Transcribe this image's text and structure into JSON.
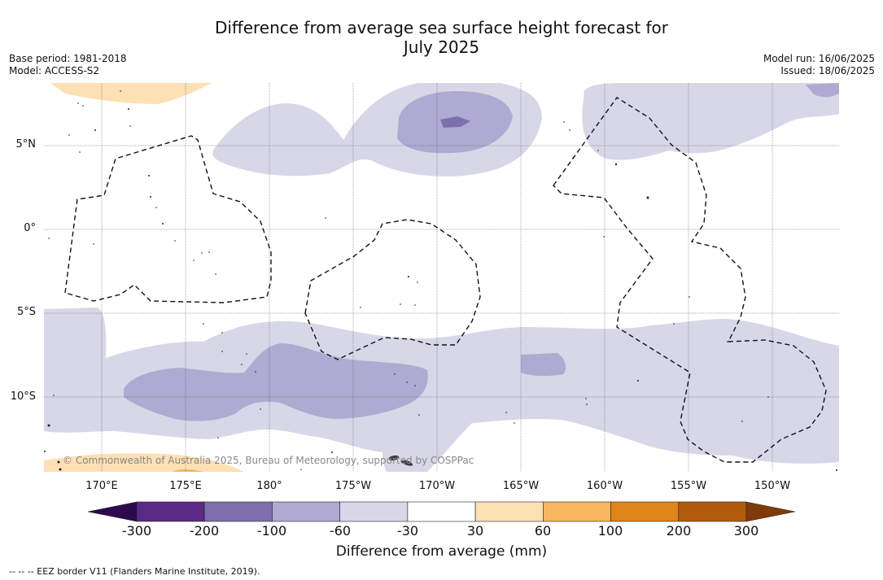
{
  "title": {
    "line1": "Difference from average sea surface height forecast for",
    "line2": "July 2025"
  },
  "info": {
    "base_period": "Base period: 1981-2018",
    "model": "Model: ACCESS-S2",
    "model_run": "Model run: 16/06/2025",
    "issued": "Issued: 18/06/2025"
  },
  "map": {
    "lat_labels": [
      "5°N",
      "0°",
      "5°S",
      "10°S"
    ],
    "lon_labels": [
      "170°E",
      "175°E",
      "180°",
      "175°W",
      "170°W",
      "165°W",
      "160°W",
      "155°W",
      "150°W"
    ],
    "copyright": "© Commonwealth of Australia 2025, Bureau of Meteorology, supported by COSPPac"
  },
  "colorbar": {
    "ticks": [
      "-300",
      "-200",
      "-100",
      "-60",
      "-30",
      "30",
      "60",
      "100",
      "200",
      "300"
    ],
    "colors": [
      "#5a2a86",
      "#7d6fac",
      "#aeaad2",
      "#d7d7e8",
      "#ffffff",
      "#fde0b4",
      "#f8b65e",
      "#e08518",
      "#b25b0d"
    ],
    "underflow_color": "#2d0a4e",
    "overflow_color": "#7f3b08",
    "label": "Difference from average (mm)"
  },
  "legend": {
    "eez": "--  --  -- EEZ border V11 (Flanders Marine Institute, 2019)."
  }
}
